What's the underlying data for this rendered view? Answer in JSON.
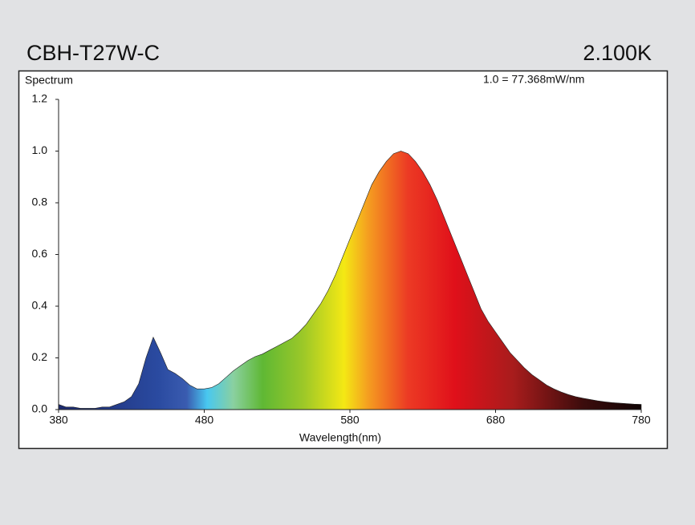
{
  "chart_data": {
    "type": "area",
    "title": "CBH-T27W-C",
    "subtitle": "2.100K",
    "panel_label": "Spectrum",
    "annotation": "1.0 = 77.368mW/nm",
    "xlabel": "Wavelength(nm)",
    "x": [
      380,
      385,
      390,
      395,
      400,
      405,
      410,
      415,
      420,
      425,
      430,
      435,
      440,
      445,
      450,
      455,
      460,
      465,
      470,
      475,
      480,
      485,
      490,
      495,
      500,
      505,
      510,
      515,
      520,
      525,
      530,
      535,
      540,
      545,
      550,
      555,
      560,
      565,
      570,
      575,
      580,
      585,
      590,
      595,
      600,
      605,
      610,
      615,
      620,
      625,
      630,
      635,
      640,
      645,
      650,
      655,
      660,
      665,
      670,
      675,
      680,
      685,
      690,
      695,
      700,
      705,
      710,
      715,
      720,
      725,
      730,
      735,
      740,
      745,
      750,
      755,
      760,
      765,
      770,
      775,
      780
    ],
    "values": [
      0.02,
      0.01,
      0.01,
      0.005,
      0.005,
      0.005,
      0.01,
      0.01,
      0.02,
      0.03,
      0.05,
      0.1,
      0.2,
      0.28,
      0.22,
      0.155,
      0.14,
      0.12,
      0.095,
      0.08,
      0.08,
      0.085,
      0.1,
      0.125,
      0.15,
      0.17,
      0.19,
      0.205,
      0.215,
      0.23,
      0.245,
      0.26,
      0.275,
      0.3,
      0.33,
      0.37,
      0.41,
      0.46,
      0.52,
      0.59,
      0.66,
      0.73,
      0.8,
      0.87,
      0.92,
      0.96,
      0.99,
      1.0,
      0.99,
      0.96,
      0.92,
      0.87,
      0.81,
      0.74,
      0.67,
      0.6,
      0.53,
      0.46,
      0.39,
      0.34,
      0.3,
      0.26,
      0.22,
      0.19,
      0.16,
      0.135,
      0.115,
      0.095,
      0.08,
      0.068,
      0.058,
      0.05,
      0.044,
      0.039,
      0.034,
      0.03,
      0.027,
      0.025,
      0.023,
      0.021,
      0.02
    ],
    "xlim": [
      380,
      780
    ],
    "ylim": [
      0,
      1.2
    ],
    "xticks": [
      380,
      480,
      580,
      680,
      780
    ],
    "yticks": [
      {
        "value": 0,
        "label": "0.0"
      },
      0.2,
      0.4,
      0.6,
      0.8,
      {
        "value": 1,
        "label": "1.0"
      },
      1.2
    ]
  }
}
